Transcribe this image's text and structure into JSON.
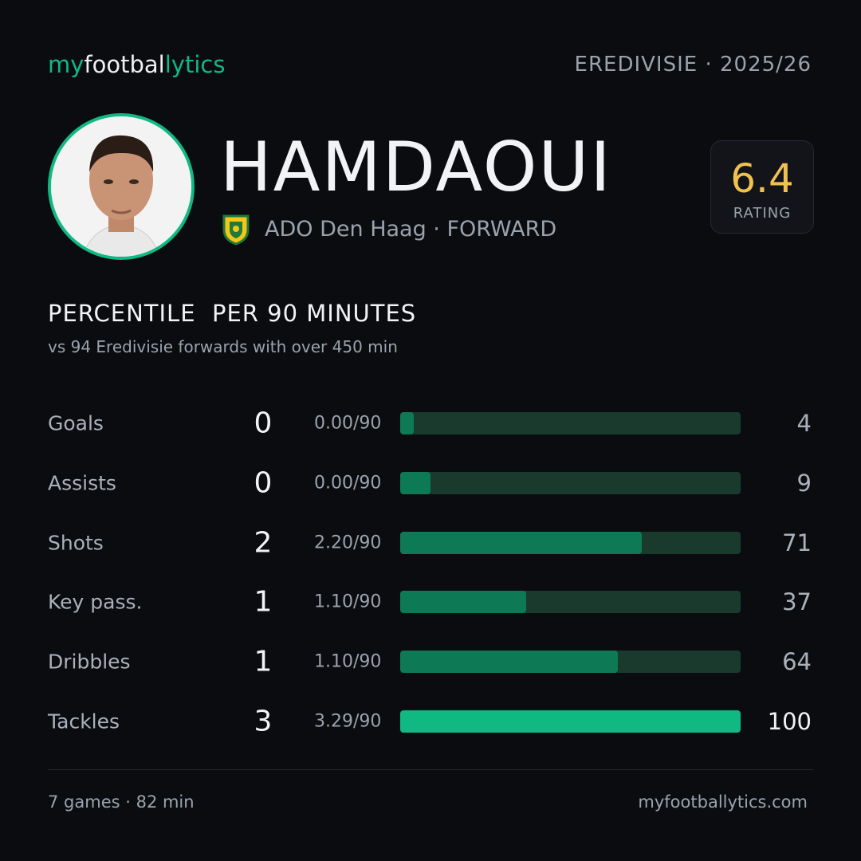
{
  "header": {
    "brand": [
      "my",
      "footbal",
      "lytics"
    ],
    "league": "EREDIVISIE · 2025/26"
  },
  "player": {
    "name": "HAMDAOUI",
    "club": "ADO Den Haag · FORWARD",
    "rating": 6.4,
    "rating_label": "RATING"
  },
  "section": {
    "title": "PERCENTILE  PER 90 MINUTES",
    "subtitle": "vs 94 Eredivisie forwards with over 450 min"
  },
  "chart_data": {
    "type": "bar",
    "categories": [
      "Goals",
      "Assists",
      "Shots",
      "Key pass.",
      "Dribbles",
      "Tackles"
    ],
    "counts": [
      0,
      0,
      2,
      1,
      1,
      3
    ],
    "per90": [
      "0.00/90",
      "0.00/90",
      "2.20/90",
      "1.10/90",
      "1.10/90",
      "3.29/90"
    ],
    "values": [
      4,
      9,
      71,
      37,
      64,
      100
    ],
    "xlim": [
      0,
      100
    ],
    "colors": [
      "#0e7a55",
      "#0e7a55",
      "#0e7a55",
      "#0e7a55",
      "#0e7a55",
      "#10b981"
    ],
    "track_color": "#1a3a2e"
  },
  "footer": {
    "left": "7 games · 82 min",
    "right": "myfootballytics.com"
  }
}
